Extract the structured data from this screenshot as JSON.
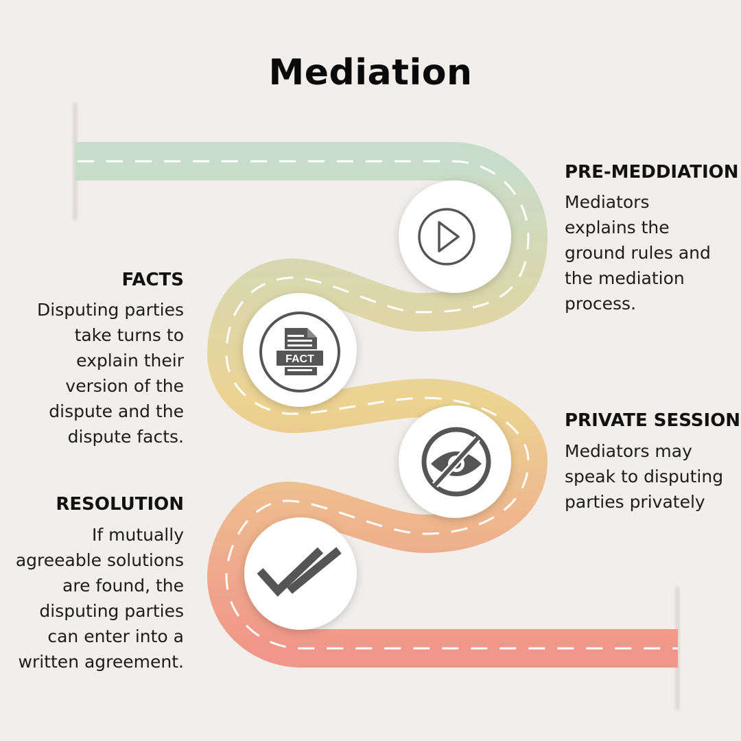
{
  "title": "Mediation",
  "colors": {
    "background": "#f1eeeb",
    "road_start": "#c7dccb",
    "road_mid": "#ecd391",
    "road_end": "#f0968a",
    "icon_gray": "#555555"
  },
  "steps": [
    {
      "heading": "PRE-MEDDIATION",
      "body": "Mediators\nexplains the\nground rules and\nthe mediation\nprocess.",
      "icon": "play-icon"
    },
    {
      "heading": "FACTS",
      "body": "Disputing parties\ntake turns to\nexplain their\nversion of the\ndispute and the\ndispute facts.",
      "icon": "fact-document-icon",
      "icon_text": "FACT"
    },
    {
      "heading": "PRIVATE SESSION",
      "body": "Mediators may\nspeak to disputing\nparties privately",
      "icon": "eye-slash-icon"
    },
    {
      "heading": "RESOLUTION",
      "body": "If mutually\nagreeable solutions\nare found, the\ndisputing parties\ncan enter into a\nwritten agreement.",
      "icon": "double-check-icon"
    }
  ]
}
